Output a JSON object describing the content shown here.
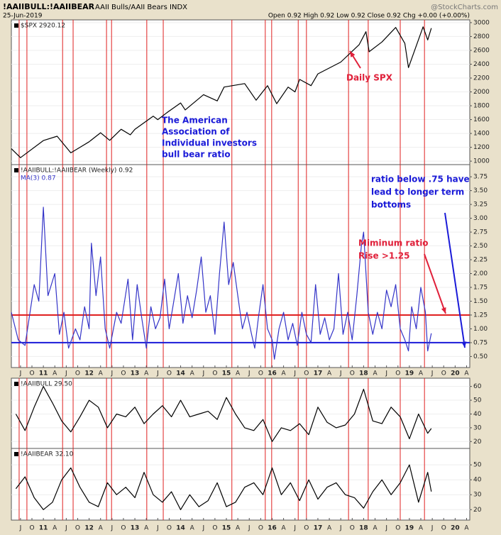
{
  "header": {
    "symbol": "!AAIIBULL:!AAIIBEAR",
    "description": "AAII Bulls/AAII Bears INDX",
    "source": "@StockCharts.com",
    "date": "25-Jun-2019",
    "quote": "Open 0.92 High 0.92 Low 0.92 Close 0.92 Chg +0.00 (+0.00%)"
  },
  "vertical_lines": {
    "color": "#e02020",
    "x": [
      2010.47,
      2010.64,
      2011.42,
      2011.65,
      2012.38,
      2012.49,
      2013.26,
      2013.62,
      2015.12,
      2015.85,
      2015.99,
      2016.57,
      2016.75,
      2017.67,
      2018.1,
      2018.8,
      2019.33
    ]
  },
  "annotations": [
    {
      "lines": [
        "The American",
        "Association of",
        "Individual investors",
        "bull bear ratio"
      ],
      "color": "#1a1ad8"
    },
    {
      "lines": [
        "Daily SPX"
      ],
      "color": "#e0203a"
    },
    {
      "lines": [
        "ratio below .75 have",
        "lead to longer term",
        "bottoms"
      ],
      "color": "#1a1ad8"
    },
    {
      "lines": [
        "Miminum ratio",
        "Rise >1.25"
      ],
      "color": "#e0203a"
    }
  ],
  "chart_data": [
    {
      "type": "line",
      "label": "$SPX 2920.12",
      "xlim": [
        2010.3,
        2020.32
      ],
      "ylim": [
        950,
        3040
      ],
      "yticks": [
        1000,
        1200,
        1400,
        1600,
        1800,
        2000,
        2200,
        2400,
        2600,
        2800,
        3000
      ],
      "x": [
        2010.3,
        2010.5,
        2011.0,
        2011.3,
        2011.6,
        2011.8,
        2012.0,
        2012.25,
        2012.45,
        2012.7,
        2012.9,
        2013.0,
        2013.4,
        2013.5,
        2013.7,
        2014.0,
        2014.1,
        2014.5,
        2014.8,
        2014.95,
        2015.4,
        2015.65,
        2015.9,
        2016.1,
        2016.35,
        2016.5,
        2016.6,
        2016.85,
        2017.0,
        2017.5,
        2017.9,
        2018.05,
        2018.12,
        2018.4,
        2018.7,
        2018.9,
        2018.98,
        2019.3,
        2019.4,
        2019.48
      ],
      "series": [
        {
          "name": "$SPX",
          "color": "#000000",
          "values": [
            1180,
            1050,
            1297,
            1360,
            1120,
            1200,
            1280,
            1410,
            1300,
            1460,
            1380,
            1460,
            1650,
            1600,
            1700,
            1840,
            1740,
            1960,
            1870,
            2070,
            2120,
            1880,
            2090,
            1830,
            2070,
            2000,
            2180,
            2090,
            2260,
            2430,
            2680,
            2870,
            2580,
            2720,
            2930,
            2700,
            2350,
            2940,
            2750,
            2920
          ]
        }
      ]
    },
    {
      "type": "line",
      "label": "!AAIIBULL:!AAIIBEAR (Weekly) 0.92",
      "xlim": [
        2010.3,
        2020.32
      ],
      "ylim": [
        0.3,
        3.97
      ],
      "yticks": [
        {
          "value": 0.5,
          "label": "0.50"
        },
        0.75,
        {
          "value": 1,
          "label": "1.00"
        },
        1.25,
        {
          "value": 1.5,
          "label": "1.50"
        },
        1.75,
        {
          "value": 2,
          "label": "2.00"
        },
        2.25,
        {
          "value": 2.5,
          "label": "2.50"
        },
        2.75,
        {
          "value": 3,
          "label": "3.00"
        },
        3.25,
        {
          "value": 3.5,
          "label": "3.50"
        },
        3.75
      ],
      "hlines": [
        {
          "value": 1.25,
          "color": "#e02020"
        },
        {
          "value": 0.75,
          "color": "#1a1ad8"
        }
      ],
      "x": [
        2010.3,
        2010.45,
        2010.6,
        2010.8,
        2010.9,
        2011.0,
        2011.1,
        2011.25,
        2011.35,
        2011.45,
        2011.55,
        2011.7,
        2011.8,
        2011.9,
        2012.0,
        2012.05,
        2012.15,
        2012.25,
        2012.35,
        2012.45,
        2012.6,
        2012.7,
        2012.85,
        2012.95,
        2013.05,
        2013.15,
        2013.25,
        2013.35,
        2013.45,
        2013.55,
        2013.65,
        2013.75,
        2013.85,
        2013.95,
        2014.05,
        2014.15,
        2014.25,
        2014.35,
        2014.45,
        2014.55,
        2014.65,
        2014.75,
        2014.85,
        2014.95,
        2015.05,
        2015.15,
        2015.25,
        2015.35,
        2015.45,
        2015.55,
        2015.62,
        2015.7,
        2015.8,
        2015.9,
        2016.0,
        2016.05,
        2016.15,
        2016.25,
        2016.35,
        2016.45,
        2016.55,
        2016.65,
        2016.75,
        2016.85,
        2016.95,
        2017.05,
        2017.15,
        2017.25,
        2017.35,
        2017.45,
        2017.55,
        2017.65,
        2017.75,
        2017.85,
        2017.95,
        2018.0,
        2018.1,
        2018.2,
        2018.3,
        2018.4,
        2018.5,
        2018.6,
        2018.7,
        2018.8,
        2018.9,
        2018.98,
        2019.05,
        2019.15,
        2019.25,
        2019.35,
        2019.4,
        2019.48
      ],
      "series": [
        {
          "name": "MA(3) 0.87",
          "color": "#3434c8",
          "values": [
            1.3,
            0.8,
            0.7,
            1.8,
            1.5,
            3.2,
            1.6,
            2.0,
            0.9,
            1.3,
            0.65,
            1.0,
            0.8,
            1.4,
            1.0,
            2.55,
            1.6,
            2.3,
            1.0,
            0.65,
            1.3,
            1.1,
            1.9,
            0.8,
            1.8,
            1.2,
            0.65,
            1.4,
            1.0,
            1.2,
            1.9,
            1.0,
            1.5,
            2.0,
            1.1,
            1.6,
            1.2,
            1.7,
            2.3,
            1.3,
            1.6,
            0.9,
            2.0,
            2.93,
            1.8,
            2.2,
            1.6,
            1.0,
            1.3,
            0.9,
            0.65,
            1.2,
            1.8,
            1.0,
            0.8,
            0.45,
            1.0,
            1.3,
            0.8,
            1.1,
            0.7,
            1.3,
            0.9,
            0.75,
            1.8,
            0.9,
            1.2,
            0.8,
            1.0,
            2.0,
            0.9,
            1.3,
            0.8,
            1.6,
            2.5,
            2.75,
            1.3,
            0.9,
            1.3,
            1.0,
            1.7,
            1.4,
            1.8,
            1.0,
            0.8,
            0.6,
            1.4,
            1.0,
            1.75,
            1.3,
            0.6,
            0.92
          ]
        }
      ],
      "xticks": [
        {
          "value": 2010.5,
          "label": "J"
        },
        {
          "value": 2010.75,
          "label": "O"
        },
        {
          "value": 2011,
          "label": "11"
        },
        {
          "value": 2011.25,
          "label": "A"
        },
        {
          "value": 2011.5,
          "label": "J"
        },
        {
          "value": 2011.75,
          "label": "O"
        },
        {
          "value": 2012,
          "label": "12"
        },
        {
          "value": 2012.25,
          "label": "A"
        },
        {
          "value": 2012.5,
          "label": "J"
        },
        {
          "value": 2012.75,
          "label": "O"
        },
        {
          "value": 2013,
          "label": "13"
        },
        {
          "value": 2013.25,
          "label": "A"
        },
        {
          "value": 2013.5,
          "label": "J"
        },
        {
          "value": 2013.75,
          "label": "O"
        },
        {
          "value": 2014,
          "label": "14"
        },
        {
          "value": 2014.25,
          "label": "A"
        },
        {
          "value": 2014.5,
          "label": "J"
        },
        {
          "value": 2014.75,
          "label": "O"
        },
        {
          "value": 2015,
          "label": "15"
        },
        {
          "value": 2015.25,
          "label": "A"
        },
        {
          "value": 2015.5,
          "label": "J"
        },
        {
          "value": 2015.75,
          "label": "O"
        },
        {
          "value": 2016,
          "label": "16"
        },
        {
          "value": 2016.25,
          "label": "A"
        },
        {
          "value": 2016.5,
          "label": "J"
        },
        {
          "value": 2016.75,
          "label": "O"
        },
        {
          "value": 2017,
          "label": "17"
        },
        {
          "value": 2017.25,
          "label": "A"
        },
        {
          "value": 2017.5,
          "label": "J"
        },
        {
          "value": 2017.75,
          "label": "O"
        },
        {
          "value": 2018,
          "label": "18"
        },
        {
          "value": 2018.25,
          "label": "A"
        },
        {
          "value": 2018.5,
          "label": "J"
        },
        {
          "value": 2018.75,
          "label": "O"
        },
        {
          "value": 2019,
          "label": "19"
        },
        {
          "value": 2019.25,
          "label": "A"
        },
        {
          "value": 2019.5,
          "label": "J"
        },
        {
          "value": 2019.75,
          "label": "O"
        },
        {
          "value": 2020,
          "label": "20"
        },
        {
          "value": 2020.25,
          "label": "A"
        }
      ]
    },
    {
      "type": "line",
      "label": "!AAIIBULL 29.50",
      "xlim": [
        2010.3,
        2020.32
      ],
      "ylim": [
        15,
        66
      ],
      "yticks": [
        20,
        30,
        40,
        50,
        60
      ],
      "x": [
        2010.4,
        2010.6,
        2010.8,
        2011.0,
        2011.2,
        2011.4,
        2011.6,
        2011.8,
        2012.0,
        2012.2,
        2012.4,
        2012.6,
        2012.8,
        2013.0,
        2013.2,
        2013.4,
        2013.6,
        2013.8,
        2014.0,
        2014.2,
        2014.4,
        2014.6,
        2014.8,
        2015.0,
        2015.2,
        2015.4,
        2015.6,
        2015.8,
        2016.0,
        2016.2,
        2016.4,
        2016.6,
        2016.8,
        2017.0,
        2017.2,
        2017.4,
        2017.6,
        2017.8,
        2018.0,
        2018.2,
        2018.4,
        2018.6,
        2018.8,
        2019.0,
        2019.2,
        2019.4,
        2019.48
      ],
      "series": [
        {
          "name": "!AAIIBULL",
          "color": "#000000",
          "values": [
            40,
            28,
            45,
            60,
            48,
            35,
            27,
            38,
            50,
            45,
            30,
            40,
            38,
            45,
            33,
            40,
            46,
            38,
            50,
            38,
            40,
            42,
            36,
            52,
            40,
            30,
            28,
            36,
            20,
            30,
            28,
            33,
            25,
            45,
            34,
            30,
            32,
            40,
            58,
            35,
            33,
            45,
            38,
            22,
            40,
            26,
            29.5
          ]
        }
      ]
    },
    {
      "type": "line",
      "label": "!AAIIBEAR 32.10",
      "xlim": [
        2010.3,
        2020.32
      ],
      "ylim": [
        13,
        61
      ],
      "yticks": [
        20,
        30,
        40,
        50
      ],
      "x": [
        2010.4,
        2010.6,
        2010.8,
        2011.0,
        2011.2,
        2011.4,
        2011.6,
        2011.8,
        2012.0,
        2012.2,
        2012.4,
        2012.6,
        2012.8,
        2013.0,
        2013.2,
        2013.4,
        2013.6,
        2013.8,
        2014.0,
        2014.2,
        2014.4,
        2014.6,
        2014.8,
        2015.0,
        2015.2,
        2015.4,
        2015.6,
        2015.8,
        2016.0,
        2016.2,
        2016.4,
        2016.6,
        2016.8,
        2017.0,
        2017.2,
        2017.4,
        2017.6,
        2017.8,
        2018.0,
        2018.2,
        2018.4,
        2018.6,
        2018.8,
        2019.0,
        2019.2,
        2019.4,
        2019.48
      ],
      "series": [
        {
          "name": "!AAIIBEAR",
          "color": "#000000",
          "values": [
            34,
            42,
            28,
            20,
            25,
            40,
            48,
            35,
            25,
            22,
            38,
            30,
            35,
            28,
            45,
            30,
            25,
            32,
            20,
            30,
            22,
            26,
            38,
            22,
            25,
            35,
            38,
            30,
            48,
            30,
            38,
            26,
            40,
            27,
            35,
            38,
            30,
            28,
            21,
            32,
            40,
            30,
            38,
            50,
            25,
            45,
            32.1
          ]
        }
      ],
      "xticks": [
        {
          "value": 2010.5,
          "label": "J"
        },
        {
          "value": 2010.75,
          "label": "O"
        },
        {
          "value": 2011,
          "label": "11"
        },
        {
          "value": 2011.25,
          "label": "A"
        },
        {
          "value": 2011.5,
          "label": "J"
        },
        {
          "value": 2011.75,
          "label": "O"
        },
        {
          "value": 2012,
          "label": "12"
        },
        {
          "value": 2012.25,
          "label": "A"
        },
        {
          "value": 2012.5,
          "label": "J"
        },
        {
          "value": 2012.75,
          "label": "O"
        },
        {
          "value": 2013,
          "label": "13"
        },
        {
          "value": 2013.25,
          "label": "A"
        },
        {
          "value": 2013.5,
          "label": "J"
        },
        {
          "value": 2013.75,
          "label": "O"
        },
        {
          "value": 2014,
          "label": "14"
        },
        {
          "value": 2014.25,
          "label": "A"
        },
        {
          "value": 2014.5,
          "label": "J"
        },
        {
          "value": 2014.75,
          "label": "O"
        },
        {
          "value": 2015,
          "label": "15"
        },
        {
          "value": 2015.25,
          "label": "A"
        },
        {
          "value": 2015.5,
          "label": "J"
        },
        {
          "value": 2015.75,
          "label": "O"
        },
        {
          "value": 2016,
          "label": "16"
        },
        {
          "value": 2016.25,
          "label": "A"
        },
        {
          "value": 2016.5,
          "label": "J"
        },
        {
          "value": 2016.75,
          "label": "O"
        },
        {
          "value": 2017,
          "label": "17"
        },
        {
          "value": 2017.25,
          "label": "A"
        },
        {
          "value": 2017.5,
          "label": "J"
        },
        {
          "value": 2017.75,
          "label": "O"
        },
        {
          "value": 2018,
          "label": "18"
        },
        {
          "value": 2018.25,
          "label": "A"
        },
        {
          "value": 2018.5,
          "label": "J"
        },
        {
          "value": 2018.75,
          "label": "O"
        },
        {
          "value": 2019,
          "label": "19"
        },
        {
          "value": 2019.25,
          "label": "A"
        },
        {
          "value": 2019.5,
          "label": "J"
        },
        {
          "value": 2019.75,
          "label": "O"
        },
        {
          "value": 2020,
          "label": "20"
        },
        {
          "value": 2020.25,
          "label": "A"
        }
      ]
    }
  ]
}
